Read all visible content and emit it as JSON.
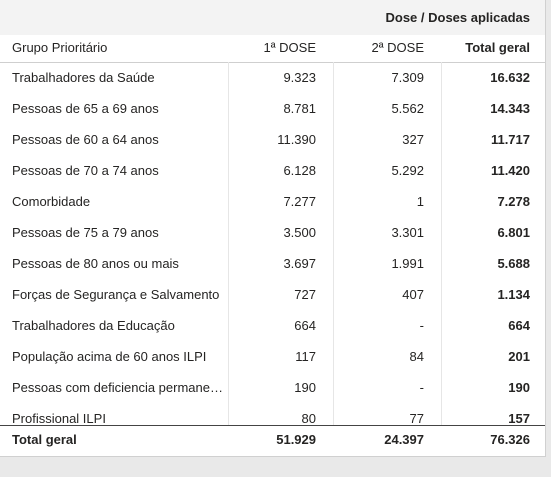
{
  "header": {
    "title": "Dose / Doses aplicadas"
  },
  "table": {
    "columns": [
      "Grupo Prioritário",
      "1ª DOSE",
      "2ª DOSE",
      "Total geral"
    ],
    "rows": [
      [
        "Trabalhadores da Saúde",
        "9.323",
        "7.309",
        "16.632"
      ],
      [
        "Pessoas de 65 a 69 anos",
        "8.781",
        "5.562",
        "14.343"
      ],
      [
        "Pessoas de 60 a 64 anos",
        "11.390",
        "327",
        "11.717"
      ],
      [
        "Pessoas de 70 a 74 anos",
        "6.128",
        "5.292",
        "11.420"
      ],
      [
        "Comorbidade",
        "7.277",
        "1",
        "7.278"
      ],
      [
        "Pessoas de 75 a 79 anos",
        "3.500",
        "3.301",
        "6.801"
      ],
      [
        "Pessoas de 80 anos ou mais",
        "3.697",
        "1.991",
        "5.688"
      ],
      [
        "Forças de Segurança e Salvamento",
        "727",
        "407",
        "1.134"
      ],
      [
        "Trabalhadores da Educação",
        "664",
        "-",
        "664"
      ],
      [
        "População acima de 60 anos ILPI",
        "117",
        "84",
        "201"
      ],
      [
        "Pessoas com deficiencia permane…",
        "190",
        "-",
        "190"
      ],
      [
        "Profissional ILPI",
        "80",
        "77",
        "157"
      ]
    ],
    "total": [
      "Total geral",
      "51.929",
      "24.397",
      "76.326"
    ]
  }
}
